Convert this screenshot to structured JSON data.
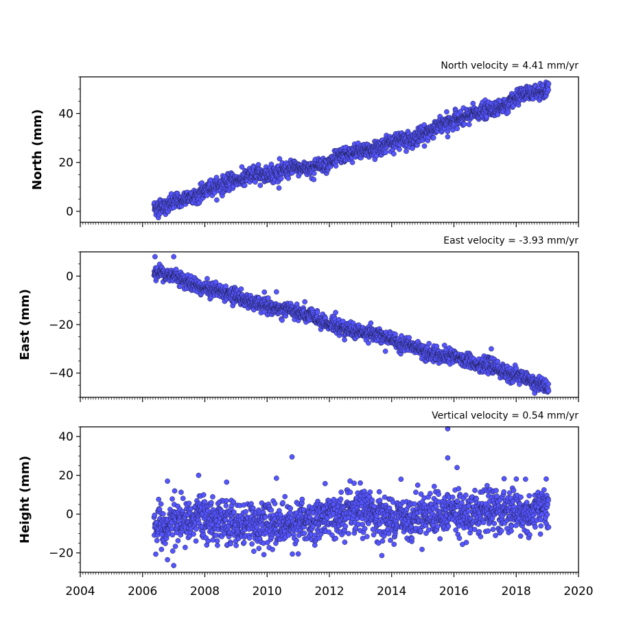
{
  "chart_data": [
    {
      "type": "scatter",
      "title": "North velocity = 4.41 mm/yr",
      "ylabel": "North (mm)",
      "xlim": [
        2004,
        2020
      ],
      "ylim": [
        -4.5,
        55
      ],
      "yticks": [
        0,
        20,
        40
      ],
      "xticks": [
        2004,
        2006,
        2008,
        2010,
        2012,
        2014,
        2016,
        2018,
        2020
      ],
      "x_tick_labels_shown": false,
      "marker_color": "#5555ff",
      "marker_edge": "#1a1a40",
      "series": [
        {
          "x_range": [
            2006.37,
            2019.04
          ],
          "trend_points": [
            [
              2006.4,
              1.3
            ],
            [
              2007.5,
              5.5
            ],
            [
              2008.5,
              11.0
            ],
            [
              2010.0,
              16.0
            ],
            [
              2011.0,
              17.0
            ],
            [
              2012.0,
              20.0
            ],
            [
              2013.0,
              24.0
            ],
            [
              2014.0,
              28.0
            ],
            [
              2015.0,
              32.0
            ],
            [
              2016.0,
              37.0
            ],
            [
              2017.0,
              41.0
            ],
            [
              2018.0,
              45.0
            ],
            [
              2019.0,
              50.0
            ]
          ],
          "scatter_mm": 1.6,
          "outliers": [
            [
              2010.4,
              21.5
            ],
            [
              2015.8,
              30.5
            ],
            [
              2011.5,
              13.0
            ]
          ]
        }
      ]
    },
    {
      "type": "scatter",
      "title": "East velocity = -3.93 mm/yr",
      "ylabel": "East (mm)",
      "xlim": [
        2004,
        2020
      ],
      "ylim": [
        -50,
        10
      ],
      "yticks": [
        0,
        -20,
        -40
      ],
      "ytick_labels": [
        "0",
        "−20",
        "−40"
      ],
      "xticks": [
        2004,
        2006,
        2008,
        2010,
        2012,
        2014,
        2016,
        2018,
        2020
      ],
      "x_tick_labels_shown": false,
      "marker_color": "#5555ff",
      "marker_edge": "#1a1a40",
      "series": [
        {
          "x_range": [
            2006.37,
            2019.04
          ],
          "trend_points": [
            [
              2006.4,
              2.0
            ],
            [
              2007.0,
              0.5
            ],
            [
              2008.0,
              -4.5
            ],
            [
              2009.0,
              -8.5
            ],
            [
              2010.0,
              -13.0
            ],
            [
              2011.0,
              -15.5
            ],
            [
              2012.0,
              -20.0
            ],
            [
              2013.0,
              -22.5
            ],
            [
              2014.0,
              -26.5
            ],
            [
              2015.0,
              -30.5
            ],
            [
              2016.0,
              -33.5
            ],
            [
              2017.0,
              -37.0
            ],
            [
              2018.0,
              -41.0
            ],
            [
              2019.0,
              -46.5
            ]
          ],
          "scatter_mm": 1.5,
          "outliers": [
            [
              2006.4,
              8.0
            ],
            [
              2007.0,
              8.0
            ],
            [
              2010.3,
              -6.5
            ],
            [
              2012.2,
              -15.0
            ],
            [
              2013.8,
              -31.0
            ],
            [
              2017.2,
              -30.0
            ]
          ]
        }
      ]
    },
    {
      "type": "scatter",
      "title": "Vertical velocity = 0.54 mm/yr",
      "ylabel": "Height (mm)",
      "xlim": [
        2004,
        2020
      ],
      "ylim": [
        -30,
        45
      ],
      "yticks": [
        40,
        20,
        0,
        -20
      ],
      "ytick_labels": [
        "40",
        "20",
        "0",
        "−20"
      ],
      "xticks": [
        2004,
        2006,
        2008,
        2010,
        2012,
        2014,
        2016,
        2018,
        2020
      ],
      "xtick_labels": [
        "2004",
        "2006",
        "2008",
        "2010",
        "2012",
        "2014",
        "2016",
        "2018",
        "2020"
      ],
      "marker_color": "#5555ff",
      "marker_edge": "#1a1a40",
      "series": [
        {
          "x_range": [
            2006.37,
            2019.04
          ],
          "trend_points": [
            [
              2006.4,
              -4.0
            ],
            [
              2008.0,
              -4.0
            ],
            [
              2010.0,
              -3.5
            ],
            [
              2012.0,
              -3.0
            ],
            [
              2014.0,
              -1.0
            ],
            [
              2016.0,
              2.0
            ],
            [
              2018.0,
              0.0
            ],
            [
              2019.0,
              2.0
            ]
          ],
          "scatter_mm": 5.5,
          "outliers": [
            [
              2015.8,
              44.0
            ],
            [
              2015.8,
              29.0
            ],
            [
              2010.8,
              29.5
            ],
            [
              2016.1,
              24.0
            ],
            [
              2007.8,
              20.0
            ],
            [
              2010.3,
              18.5
            ],
            [
              2006.8,
              -23.5
            ],
            [
              2007.0,
              -26.5
            ],
            [
              2011.0,
              -20.5
            ],
            [
              2018.3,
              18.0
            ],
            [
              2014.3,
              18.0
            ],
            [
              2008.7,
              16.5
            ],
            [
              2006.8,
              17.0
            ]
          ]
        }
      ]
    }
  ]
}
